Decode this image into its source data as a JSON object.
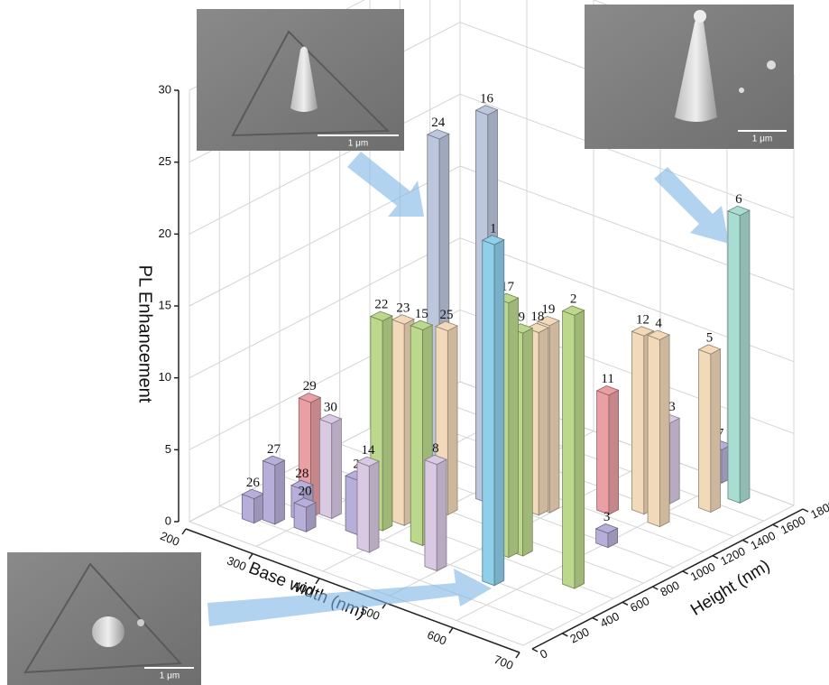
{
  "chart_data": {
    "type": "bar3d",
    "xlabel": "Base width (nm)",
    "ylabel": "Height (nm)",
    "zlabel": "PL Enhancement",
    "xlim": [
      200,
      700
    ],
    "xticks": [
      200,
      300,
      400,
      500,
      600,
      700
    ],
    "ylim": [
      0,
      1800
    ],
    "yticks": [
      0,
      200,
      400,
      600,
      800,
      1000,
      1200,
      1400,
      1600,
      1800
    ],
    "zlim": [
      0,
      30
    ],
    "zticks": [
      0,
      5,
      10,
      15,
      20,
      25,
      30
    ],
    "grid": true,
    "categories": [
      "26",
      "27",
      "28",
      "20",
      "29",
      "30",
      "2",
      "14",
      "22",
      "23",
      "15",
      "24",
      "25",
      "8",
      "16",
      "1",
      "17",
      "9",
      "18",
      "19",
      "2",
      "11",
      "3",
      "12",
      "4",
      "13",
      "5",
      "7",
      "6"
    ],
    "base_width": [
      250,
      270,
      290,
      310,
      290,
      310,
      360,
      400,
      375,
      385,
      435,
      370,
      405,
      490,
      420,
      565,
      530,
      540,
      485,
      490,
      640,
      545,
      600,
      575,
      610,
      580,
      630,
      590,
      640
    ],
    "height": [
      200,
      250,
      350,
      280,
      400,
      450,
      400,
      300,
      500,
      600,
      500,
      900,
      800,
      350,
      1000,
      400,
      650,
      700,
      1050,
      1100,
      600,
      1250,
      1000,
      1350,
      1300,
      1500,
      1550,
      1800,
      1700
    ],
    "values": [
      1.7,
      4.1,
      2.2,
      1.7,
      8,
      6.6,
      3.8,
      6,
      14.6,
      14,
      15,
      25,
      12.8,
      7.4,
      27,
      23.7,
      17.7,
      15.5,
      12.7,
      13,
      19,
      8.3,
      1,
      12.4,
      13,
      5.6,
      11,
      2.3,
      20
    ],
    "colors": [
      "#b7afd9",
      "#b7afd9",
      "#b7afd9",
      "#b7afd9",
      "#e99fa3",
      "#d9c9e3",
      "#b7afd9",
      "#d9c9e3",
      "#bcd88c",
      "#f1d9ba",
      "#bcd88c",
      "#bcc6dc",
      "#f1d9ba",
      "#d9c9e3",
      "#bcc6dc",
      "#8fcfea",
      "#bcd88c",
      "#bcd88c",
      "#f1d9ba",
      "#f1d9ba",
      "#bcd88c",
      "#e99fa3",
      "#b7afd9",
      "#f1d9ba",
      "#f1d9ba",
      "#d9c9e3",
      "#f1d9ba",
      "#b7afd9",
      "#a9ddd2"
    ],
    "insets": [
      {
        "scale_bar": "1 μm"
      },
      {
        "scale_bar": "1 μm"
      },
      {
        "scale_bar": "1 μm"
      }
    ]
  }
}
